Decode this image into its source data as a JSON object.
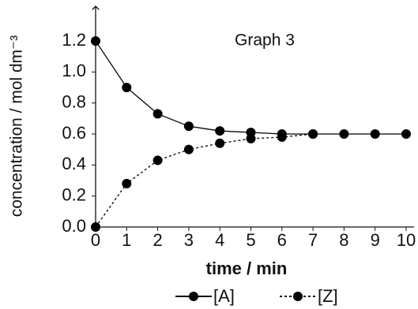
{
  "chart_data": {
    "type": "line",
    "annotation": "Graph 3",
    "x_label": "time / min",
    "y_label": "concentration / mol dm⁻³",
    "x": [
      0,
      1,
      2,
      3,
      4,
      5,
      6,
      7,
      8,
      9,
      10
    ],
    "series": [
      {
        "name": "[A]",
        "color": "#000000",
        "style": "solid",
        "values": [
          1.2,
          0.9,
          0.73,
          0.65,
          0.62,
          0.61,
          0.6,
          0.6,
          0.6,
          0.6,
          0.6
        ]
      },
      {
        "name": "[Z]",
        "color": "#000000",
        "style": "dotted",
        "values": [
          0,
          0.28,
          0.43,
          0.5,
          0.54,
          0.57,
          0.58,
          0.6,
          null,
          null,
          null
        ]
      }
    ],
    "xlim": [
      0,
      10
    ],
    "xticks": [
      0,
      1,
      2,
      3,
      4,
      5,
      6,
      7,
      8,
      9,
      10
    ],
    "ylim": [
      0,
      1.2
    ],
    "yticks": [
      {
        "value": 0,
        "label": "0.0"
      },
      0.2,
      0.4,
      0.6,
      0.8,
      {
        "value": 1,
        "label": "1.0"
      },
      1.2
    ],
    "legend": "bottom"
  }
}
